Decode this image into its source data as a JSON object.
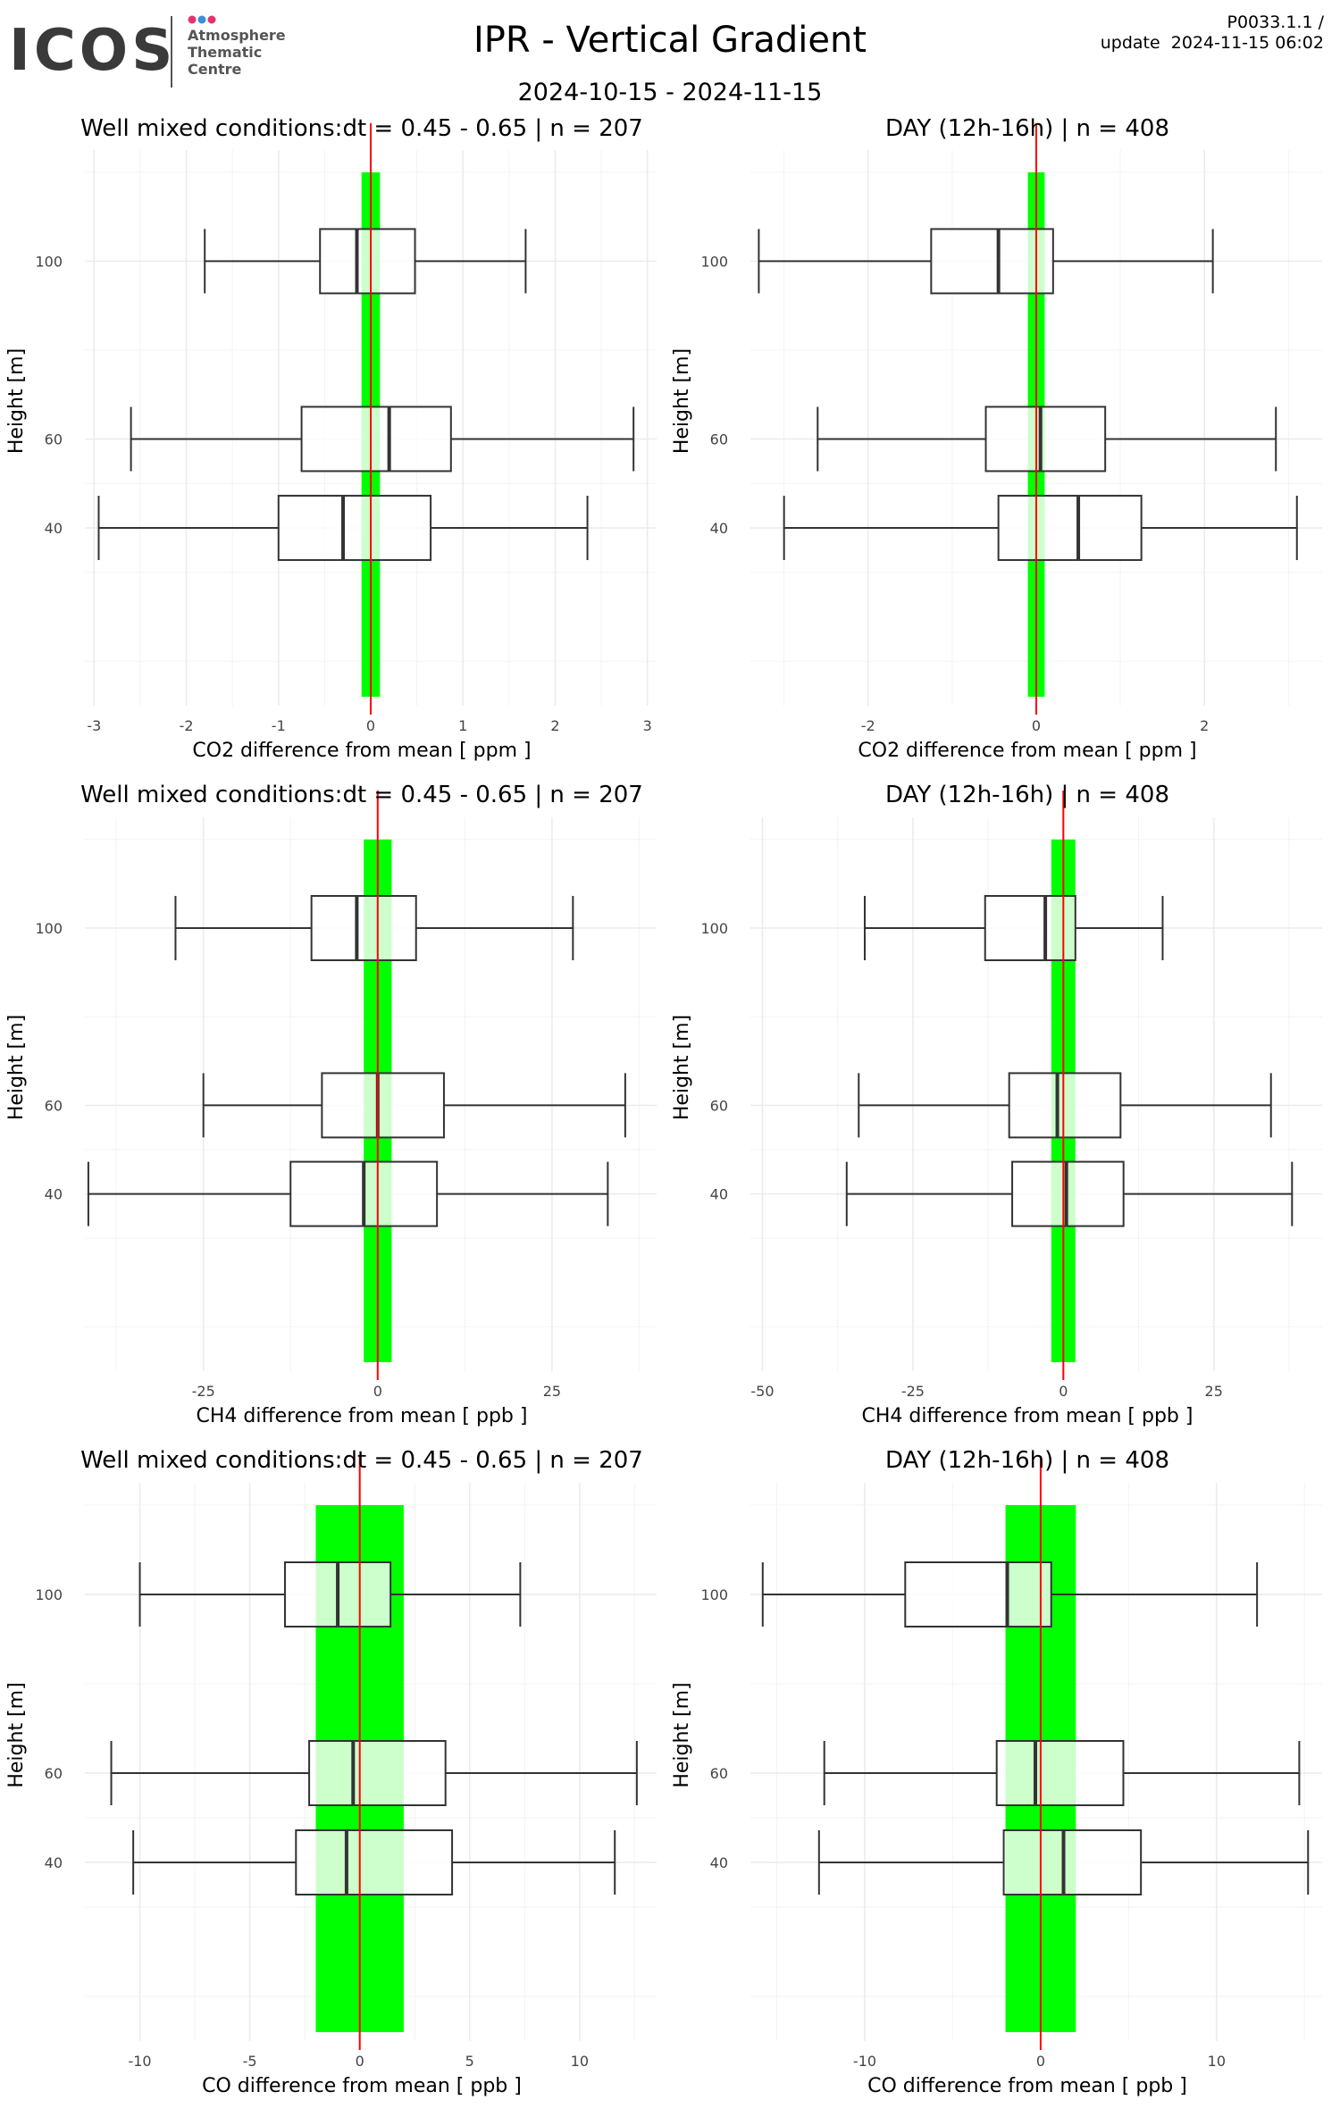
{
  "header": {
    "logo_text": "ICOS",
    "logo_subtitle": [
      "Atmosphere",
      "Thematic",
      "Centre"
    ],
    "logo_dot_colors": [
      "#e6336e",
      "#3a8fd6",
      "#e6336e"
    ],
    "title": "IPR - Vertical Gradient",
    "date_range": "2024-10-15 - 2024-11-15",
    "version": "P0033.1.1 /",
    "update": "update  2024-11-15 06:02"
  },
  "colors": {
    "band": "#00ff00",
    "band_inner": "#ccffcc",
    "mean_line": "#ff0000",
    "box_stroke": "#333333",
    "grid": "#ebebeb"
  },
  "chart_data": [
    {
      "type": "boxplot",
      "orientation": "horizontal",
      "title": "Well mixed conditions:dt = 0.45 - 0.65 | n = 207",
      "xlabel": "CO2  difference from mean [ ppm ]",
      "ylabel": "Height [m]",
      "xlim": [
        -3.1,
        3.1
      ],
      "xticks": [
        -3,
        -2,
        -1,
        0,
        1,
        2,
        3
      ],
      "xticklabels": [
        "-3",
        "-2",
        "-1",
        "0",
        "1",
        "2",
        "3"
      ],
      "ylim": [
        0,
        125
      ],
      "yticks": [
        40,
        60,
        100
      ],
      "yticklabels": [
        "40",
        "60",
        "100"
      ],
      "band": [
        -0.1,
        0.1
      ],
      "mean": 0,
      "boxes": [
        {
          "height": 100,
          "whisker_low": -1.8,
          "q1": -0.55,
          "median": -0.15,
          "q3": 0.48,
          "whisker_high": 1.68
        },
        {
          "height": 60,
          "whisker_low": -2.6,
          "q1": -0.75,
          "median": 0.2,
          "q3": 0.87,
          "whisker_high": 2.85
        },
        {
          "height": 40,
          "whisker_low": -2.95,
          "q1": -1.0,
          "median": -0.3,
          "q3": 0.65,
          "whisker_high": 2.35
        }
      ]
    },
    {
      "type": "boxplot",
      "orientation": "horizontal",
      "title": "DAY (12h-16h) | n = 408",
      "xlabel": "CO2  difference from mean [ ppm ]",
      "ylabel": "Height [m]",
      "xlim": [
        -3.4,
        3.4
      ],
      "xticks": [
        -2,
        0,
        2
      ],
      "xticklabels": [
        "-2",
        "0",
        "2"
      ],
      "ylim": [
        0,
        125
      ],
      "yticks": [
        40,
        60,
        100
      ],
      "yticklabels": [
        "40",
        "60",
        "100"
      ],
      "band": [
        -0.1,
        0.1
      ],
      "mean": 0,
      "boxes": [
        {
          "height": 100,
          "whisker_low": -3.3,
          "q1": -1.25,
          "median": -0.45,
          "q3": 0.2,
          "whisker_high": 2.1
        },
        {
          "height": 60,
          "whisker_low": -2.6,
          "q1": -0.6,
          "median": 0.05,
          "q3": 0.82,
          "whisker_high": 2.85
        },
        {
          "height": 40,
          "whisker_low": -3.0,
          "q1": -0.45,
          "median": 0.5,
          "q3": 1.25,
          "whisker_high": 3.1
        }
      ]
    },
    {
      "type": "boxplot",
      "orientation": "horizontal",
      "title": "Well mixed conditions:dt = 0.45 - 0.65 | n = 207",
      "xlabel": "CH4  difference from mean [ ppb ]",
      "ylabel": "Height [m]",
      "xlim": [
        -42,
        40
      ],
      "xticks": [
        -25,
        0,
        25
      ],
      "xticklabels": [
        "-25",
        "0",
        "25"
      ],
      "ylim": [
        0,
        125
      ],
      "yticks": [
        40,
        60,
        100
      ],
      "yticklabels": [
        "40",
        "60",
        "100"
      ],
      "band": [
        -2,
        2
      ],
      "mean": 0,
      "boxes": [
        {
          "height": 100,
          "whisker_low": -29,
          "q1": -9.5,
          "median": -3,
          "q3": 5.5,
          "whisker_high": 28
        },
        {
          "height": 60,
          "whisker_low": -25,
          "q1": -8,
          "median": 0,
          "q3": 9.5,
          "whisker_high": 35.5
        },
        {
          "height": 40,
          "whisker_low": -41.5,
          "q1": -12.5,
          "median": -2,
          "q3": 8.5,
          "whisker_high": 33
        }
      ]
    },
    {
      "type": "boxplot",
      "orientation": "horizontal",
      "title": "DAY (12h-16h) | n = 408",
      "xlabel": "CH4  difference from mean [ ppb ]",
      "ylabel": "Height [m]",
      "xlim": [
        -52,
        43
      ],
      "xticks": [
        -50,
        -25,
        0,
        25
      ],
      "xticklabels": [
        "-50",
        "-25",
        "0",
        "25"
      ],
      "ylim": [
        0,
        125
      ],
      "yticks": [
        40,
        60,
        100
      ],
      "yticklabels": [
        "40",
        "60",
        "100"
      ],
      "band": [
        -2,
        2
      ],
      "mean": 0,
      "boxes": [
        {
          "height": 100,
          "whisker_low": -33,
          "q1": -13,
          "median": -3,
          "q3": 2,
          "whisker_high": 16.5
        },
        {
          "height": 60,
          "whisker_low": -34,
          "q1": -9,
          "median": -1,
          "q3": 9.5,
          "whisker_high": 34.5
        },
        {
          "height": 40,
          "whisker_low": -36,
          "q1": -8.5,
          "median": 0.5,
          "q3": 10,
          "whisker_high": 38
        }
      ]
    },
    {
      "type": "boxplot",
      "orientation": "horizontal",
      "title": "Well mixed conditions:dt = 0.45 - 0.65 | n = 207",
      "xlabel": "CO  difference from mean [ ppb ]",
      "ylabel": "Height [m]",
      "xlim": [
        -12.5,
        13.5
      ],
      "xticks": [
        -10,
        -5,
        0,
        5,
        10
      ],
      "xticklabels": [
        "-10",
        "-5",
        "0",
        "5",
        "10"
      ],
      "ylim": [
        0,
        125
      ],
      "yticks": [
        40,
        60,
        100
      ],
      "yticklabels": [
        "40",
        "60",
        "100"
      ],
      "band": [
        -2,
        2
      ],
      "mean": 0,
      "boxes": [
        {
          "height": 100,
          "whisker_low": -10,
          "q1": -3.4,
          "median": -1,
          "q3": 1.4,
          "whisker_high": 7.3
        },
        {
          "height": 60,
          "whisker_low": -11.3,
          "q1": -2.3,
          "median": -0.3,
          "q3": 3.9,
          "whisker_high": 12.6
        },
        {
          "height": 40,
          "whisker_low": -10.3,
          "q1": -2.9,
          "median": -0.6,
          "q3": 4.2,
          "whisker_high": 11.6
        }
      ]
    },
    {
      "type": "boxplot",
      "orientation": "horizontal",
      "title": "DAY (12h-16h) | n = 408",
      "xlabel": "CO  difference from mean [ ppb ]",
      "ylabel": "Height [m]",
      "xlim": [
        -16.5,
        16
      ],
      "xticks": [
        -10,
        0,
        10
      ],
      "xticklabels": [
        "-10",
        "0",
        "10"
      ],
      "ylim": [
        0,
        125
      ],
      "yticks": [
        40,
        60,
        100
      ],
      "yticklabels": [
        "40",
        "60",
        "100"
      ],
      "band": [
        -2,
        2
      ],
      "mean": 0,
      "boxes": [
        {
          "height": 100,
          "whisker_low": -15.8,
          "q1": -7.7,
          "median": -1.9,
          "q3": 0.6,
          "whisker_high": 12.3
        },
        {
          "height": 60,
          "whisker_low": -12.3,
          "q1": -2.5,
          "median": -0.3,
          "q3": 4.7,
          "whisker_high": 14.7
        },
        {
          "height": 40,
          "whisker_low": -12.6,
          "q1": -2.1,
          "median": 1.3,
          "q3": 5.7,
          "whisker_high": 15.2
        }
      ]
    }
  ]
}
